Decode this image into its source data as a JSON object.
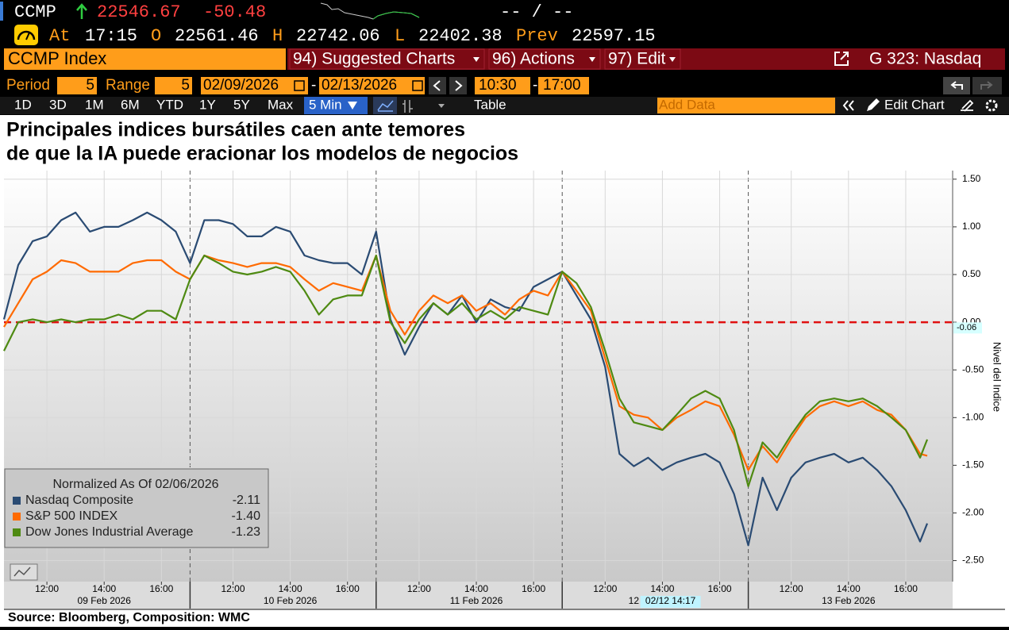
{
  "header": {
    "ticker": "CCMP",
    "last": "22546.67",
    "change": "-50.48",
    "bid_ask": "-- / --",
    "at_label": "At",
    "time": "17:15",
    "open_label": "O",
    "open": "22561.46",
    "high_label": "H",
    "high": "22742.06",
    "low_label": "L",
    "low": "22402.38",
    "prev_label": "Prev",
    "prev": "22597.15"
  },
  "toolbar": {
    "security": "CCMP Index",
    "menus": [
      "94) Suggested Charts",
      "96) Actions",
      "97) Edit"
    ],
    "page": "G 323: Nasdaq"
  },
  "controls": {
    "period_label": "Period",
    "period": "5",
    "range_label": "Range",
    "range": "5",
    "date_from": "02/09/2026",
    "date_sep": "-",
    "date_to": "02/13/2026",
    "time_from": "10:30",
    "time_to": "17:00"
  },
  "tabs": {
    "periods": [
      "1D",
      "3D",
      "1M",
      "6M",
      "YTD",
      "1Y",
      "5Y",
      "Max"
    ],
    "interval": "5 Min",
    "table": "Table",
    "add_data": "Add Data",
    "edit_chart": "Edit Chart"
  },
  "chart_data": {
    "type": "line",
    "title": [
      "Principales indices bursátiles caen ante temores",
      "de que la IA puede eracionar los modelos de negocios"
    ],
    "y_label": "Nivel del Indice",
    "legend_title": "Normalized As Of 02/06/2026",
    "x": [
      "09 Feb 2026 10:30",
      "09 Feb 2026 11:00",
      "09 Feb 2026 11:30",
      "09 Feb 2026 12:00",
      "09 Feb 2026 12:30",
      "09 Feb 2026 13:00",
      "09 Feb 2026 13:30",
      "09 Feb 2026 14:00",
      "09 Feb 2026 14:30",
      "09 Feb 2026 15:00",
      "09 Feb 2026 15:30",
      "09 Feb 2026 16:00",
      "09 Feb 2026 16:30",
      "10 Feb 2026 10:30",
      "10 Feb 2026 11:00",
      "10 Feb 2026 11:30",
      "10 Feb 2026 12:00",
      "10 Feb 2026 12:30",
      "10 Feb 2026 13:00",
      "10 Feb 2026 13:30",
      "10 Feb 2026 14:00",
      "10 Feb 2026 14:30",
      "10 Feb 2026 15:00",
      "10 Feb 2026 15:30",
      "10 Feb 2026 16:00",
      "10 Feb 2026 16:30",
      "11 Feb 2026 10:30",
      "11 Feb 2026 11:00",
      "11 Feb 2026 11:30",
      "11 Feb 2026 12:00",
      "11 Feb 2026 12:30",
      "11 Feb 2026 13:00",
      "11 Feb 2026 13:30",
      "11 Feb 2026 14:00",
      "11 Feb 2026 14:30",
      "11 Feb 2026 15:00",
      "11 Feb 2026 15:30",
      "11 Feb 2026 16:00",
      "11 Feb 2026 16:30",
      "12 Feb 2026 10:30",
      "12 Feb 2026 11:00",
      "12 Feb 2026 11:30",
      "12 Feb 2026 12:00",
      "12 Feb 2026 12:30",
      "12 Feb 2026 13:00",
      "12 Feb 2026 13:30",
      "12 Feb 2026 14:00",
      "12 Feb 2026 14:30",
      "12 Feb 2026 15:00",
      "12 Feb 2026 15:30",
      "12 Feb 2026 16:00",
      "12 Feb 2026 16:30",
      "13 Feb 2026 10:30",
      "13 Feb 2026 11:00",
      "13 Feb 2026 11:30",
      "13 Feb 2026 12:00",
      "13 Feb 2026 12:30",
      "13 Feb 2026 13:00",
      "13 Feb 2026 13:30",
      "13 Feb 2026 14:00",
      "13 Feb 2026 14:30",
      "13 Feb 2026 15:00",
      "13 Feb 2026 15:30",
      "13 Feb 2026 16:00",
      "13 Feb 2026 16:30",
      "13 Feb 2026 16:45"
    ],
    "series": [
      {
        "name": "Nasdaq Composite",
        "color": "#2a4b73",
        "legend_value": "-2.11",
        "values": [
          0.03,
          0.6,
          0.85,
          0.9,
          1.07,
          1.15,
          0.95,
          1.0,
          1.0,
          1.07,
          1.15,
          1.07,
          0.95,
          0.62,
          1.07,
          1.07,
          1.03,
          0.9,
          0.9,
          1.0,
          0.95,
          0.7,
          0.65,
          0.62,
          0.62,
          0.5,
          0.95,
          0.03,
          -0.34,
          -0.05,
          0.2,
          0.08,
          0.28,
          0,
          0.24,
          0.16,
          0.12,
          0.37,
          0.45,
          0.53,
          0.28,
          0.03,
          -0.47,
          -1.38,
          -1.51,
          -1.42,
          -1.55,
          -1.47,
          -1.42,
          -1.38,
          -1.47,
          -1.8,
          -2.34,
          -1.63,
          -1.97,
          -1.63,
          -1.47,
          -1.42,
          -1.38,
          -1.47,
          -1.42,
          -1.55,
          -1.72,
          -1.97,
          -2.3,
          -2.11
        ]
      },
      {
        "name": "S&P 500 INDEX",
        "color": "#ff6a00",
        "legend_value": "-1.40",
        "values": [
          -0.05,
          0.2,
          0.45,
          0.53,
          0.65,
          0.62,
          0.53,
          0.53,
          0.53,
          0.62,
          0.65,
          0.65,
          0.53,
          0.45,
          0.7,
          0.65,
          0.62,
          0.58,
          0.62,
          0.62,
          0.58,
          0.45,
          0.33,
          0.41,
          0.37,
          0.33,
          0.7,
          0.12,
          -0.13,
          0.12,
          0.28,
          0.2,
          0.28,
          0.12,
          0.2,
          0.08,
          0.24,
          0.33,
          0.28,
          0.53,
          0.33,
          0.12,
          -0.38,
          -0.88,
          -0.97,
          -1.0,
          -1.13,
          -1.0,
          -0.92,
          -0.83,
          -0.88,
          -1.18,
          -1.55,
          -1.3,
          -1.47,
          -1.22,
          -1.0,
          -0.88,
          -0.83,
          -0.88,
          -0.83,
          -0.92,
          -0.97,
          -1.13,
          -1.38,
          -1.4
        ]
      },
      {
        "name": "Dow Jones Industrial Average",
        "color": "#4e8a12",
        "legend_value": "-1.23",
        "values": [
          -0.3,
          0.0,
          0.03,
          0.0,
          0.03,
          0.0,
          0.03,
          0.03,
          0.08,
          0.03,
          0.12,
          0.12,
          0.03,
          0.45,
          0.7,
          0.62,
          0.53,
          0.5,
          0.53,
          0.58,
          0.53,
          0.33,
          0.08,
          0.24,
          0.28,
          0.28,
          0.7,
          0.0,
          -0.22,
          0.03,
          0.2,
          0.08,
          0.2,
          0.03,
          0.12,
          0.03,
          0.16,
          0.12,
          0.08,
          0.53,
          0.41,
          0.16,
          -0.3,
          -0.8,
          -1.05,
          -1.09,
          -1.13,
          -0.97,
          -0.8,
          -0.72,
          -0.8,
          -1.13,
          -1.72,
          -1.26,
          -1.42,
          -1.18,
          -0.97,
          -0.83,
          -0.8,
          -0.83,
          -0.8,
          -0.88,
          -1.0,
          -1.13,
          -1.42,
          -1.23
        ]
      }
    ],
    "ylim": [
      -2.72,
      1.59
    ],
    "yticks": [
      {
        "value": 1.5,
        "label": "1.50"
      },
      {
        "value": 1,
        "label": "1.00"
      },
      {
        "value": 0.5,
        "label": "0.50"
      },
      {
        "value": 0,
        "label": "0.00"
      },
      {
        "value": -0.5,
        "label": "-0.50"
      },
      {
        "value": -1,
        "label": "-1.00"
      },
      {
        "value": -1.5,
        "label": "-1.50"
      },
      {
        "value": -2,
        "label": "-2.00"
      },
      {
        "value": -2.5,
        "label": "-2.50"
      }
    ],
    "xticks": [
      {
        "value": "09 Feb 2026 12:00",
        "label": "12:00"
      },
      {
        "value": "09 Feb 2026 14:00",
        "label": "14:00"
      },
      {
        "value": "09 Feb 2026 16:00",
        "label": "16:00"
      },
      {
        "value": "10 Feb 2026 12:00",
        "label": "12:00"
      },
      {
        "value": "10 Feb 2026 14:00",
        "label": "14:00"
      },
      {
        "value": "10 Feb 2026 16:00",
        "label": "16:00"
      },
      {
        "value": "11 Feb 2026 12:00",
        "label": "12:00"
      },
      {
        "value": "11 Feb 2026 14:00",
        "label": "14:00"
      },
      {
        "value": "11 Feb 2026 16:00",
        "label": "16:00"
      },
      {
        "value": "12 Feb 2026 12:00",
        "label": "12:00"
      },
      {
        "value": "12 Feb 2026 14:00",
        "label": "14:00"
      },
      {
        "value": "12 Feb 2026 16:00",
        "label": "16:00"
      },
      {
        "value": "13 Feb 2026 12:00",
        "label": "12:00"
      },
      {
        "value": "13 Feb 2026 14:00",
        "label": "14:00"
      },
      {
        "value": "13 Feb 2026 16:00",
        "label": "16:00"
      }
    ],
    "day_labels": [
      {
        "value": "09 Feb 2026 14:00",
        "label": "09 Feb 2026"
      },
      {
        "value": "10 Feb 2026 14:00",
        "label": "10 Feb 2026"
      },
      {
        "value": "11 Feb 2026 14:00",
        "label": "11 Feb 2026"
      },
      {
        "value": "12 Feb 2026 13:00",
        "label": "12"
      },
      {
        "value": "13 Feb 2026 14:00",
        "label": "13 Feb 2026"
      }
    ],
    "crosshair": {
      "value": "12 Feb 2026 14:17",
      "label": "02/12 14:17"
    },
    "reference_line": 0,
    "y_marker": {
      "value": -0.06,
      "label": "-0.06"
    },
    "grid": true
  },
  "footer": "Source: Bloomberg, Composition: WMC"
}
